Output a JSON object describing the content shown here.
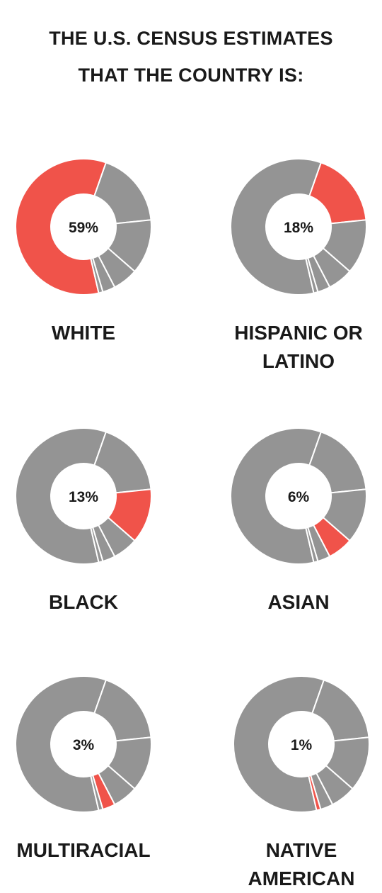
{
  "title": {
    "line1": "THE U.S. CENSUS ESTIMATES",
    "line2": "THAT THE COUNTRY IS:"
  },
  "colors": {
    "highlight": "#f0534a",
    "segment": "#949494",
    "separator": "#ffffff"
  },
  "chart_data": {
    "type": "pie",
    "subtype": "donut-small-multiples",
    "title": "THE U.S. CENSUS ESTIMATES THAT THE COUNTRY IS:",
    "categories": [
      "WHITE",
      "HISPANIC OR LATINO",
      "BLACK",
      "ASIAN",
      "MULTIRACIAL",
      "NATIVE AMERICAN"
    ],
    "values": [
      59,
      18,
      13,
      6,
      3,
      1
    ],
    "value_labels": [
      "59%",
      "18%",
      "13%",
      "6%",
      "3%",
      "1%"
    ],
    "charts": [
      {
        "label_lines": [
          "WHITE"
        ],
        "value_label": "59%",
        "highlight": "WHITE"
      },
      {
        "label_lines": [
          "HISPANIC OR",
          "LATINO"
        ],
        "value_label": "18%",
        "highlight": "HISPANIC OR LATINO"
      },
      {
        "label_lines": [
          "BLACK"
        ],
        "value_label": "13%",
        "highlight": "BLACK"
      },
      {
        "label_lines": [
          "ASIAN"
        ],
        "value_label": "6%",
        "highlight": "ASIAN"
      },
      {
        "label_lines": [
          "MULTIRACIAL"
        ],
        "value_label": "3%",
        "highlight": "MULTIRACIAL"
      },
      {
        "label_lines": [
          "NATIVE",
          "AMERICAN"
        ],
        "value_label": "1%",
        "highlight": "NATIVE AMERICAN"
      }
    ]
  }
}
